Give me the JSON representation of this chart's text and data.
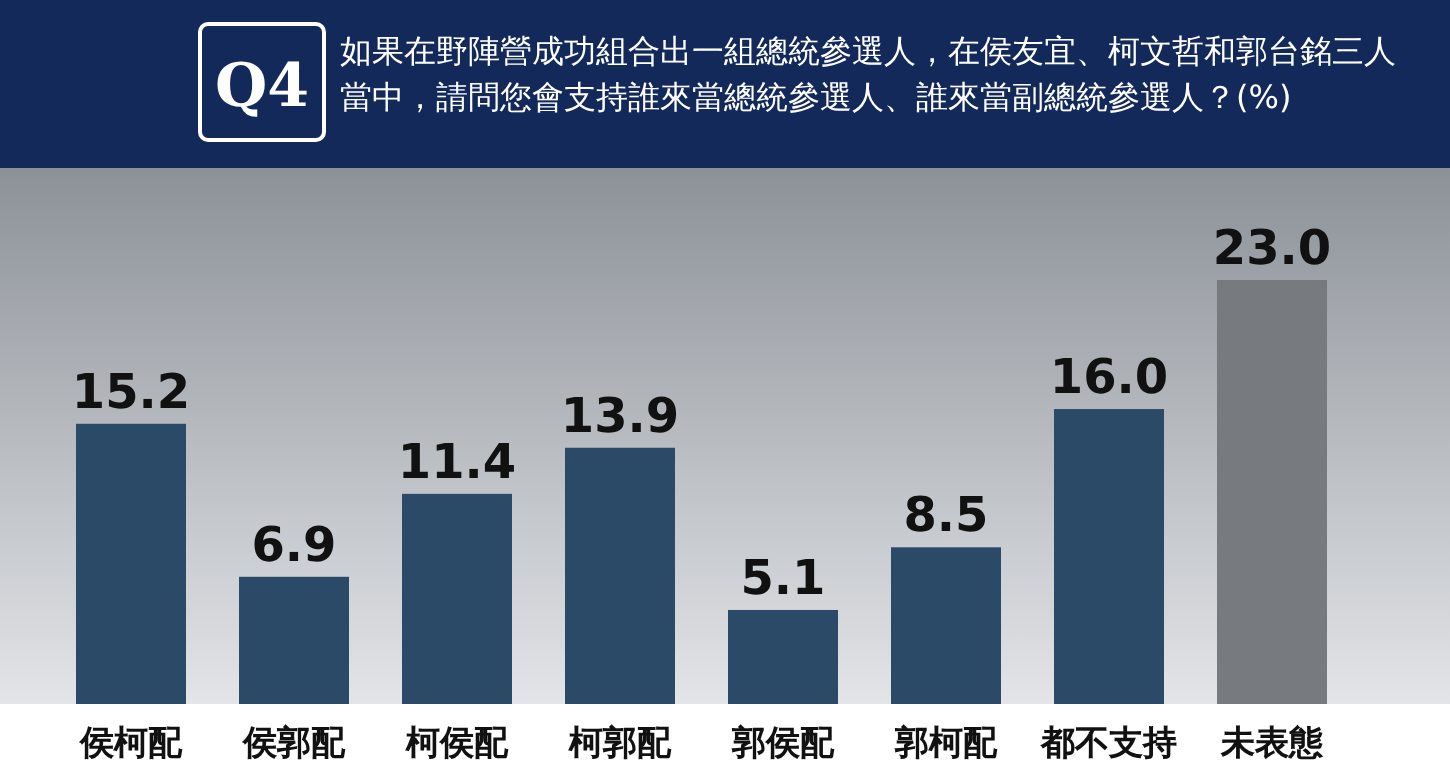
{
  "chart_data": {
    "type": "bar",
    "title": "Q4",
    "subtitle": "如果在野陣營成功組合出一組總統參選人，在侯友宜、柯文哲和郭台銘三人當中，請問您會支持誰來當總統參選人、誰來當副總統參選人？(%)",
    "categories": [
      "侯柯配",
      "侯郭配",
      "柯侯配",
      "柯郭配",
      "郭侯配",
      "郭柯配",
      "都不支持",
      "未表態"
    ],
    "values": [
      15.2,
      6.9,
      11.4,
      13.9,
      5.1,
      8.5,
      16.0,
      23.0
    ],
    "colors": [
      "#2b4a68",
      "#2b4a68",
      "#2b4a68",
      "#2b4a68",
      "#2b4a68",
      "#2b4a68",
      "#2b4a68",
      "#777b80"
    ],
    "value_labels": [
      "15.2",
      "6.9",
      "11.4",
      "13.9",
      "5.1",
      "8.5",
      "16.0",
      "23.0"
    ]
  }
}
